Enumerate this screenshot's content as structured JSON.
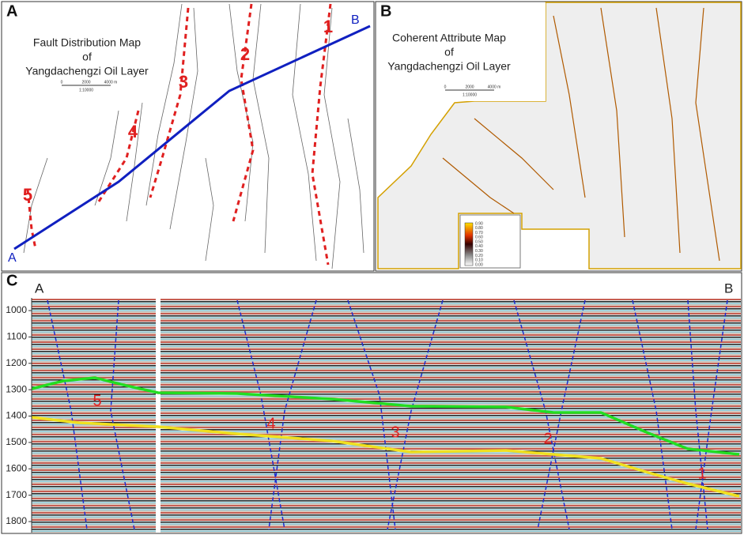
{
  "panel_a": {
    "label": "A",
    "title": [
      "Fault Distribution Map",
      "of",
      "Yangdachengzi Oil Layer"
    ],
    "scale": [
      "0",
      "2000",
      "4000 m",
      "1:10000"
    ],
    "line_ends": [
      "A",
      "B"
    ],
    "faults": [
      "1",
      "2",
      "3",
      "4",
      "5"
    ]
  },
  "panel_b": {
    "label": "B",
    "title": [
      "Coherent Attribute Map",
      "of",
      "Yangdachengzi Oil Layer"
    ],
    "scale": [
      "0",
      "2000",
      "4000 m",
      "1:10000"
    ],
    "colorbar": [
      "0.90",
      "0.80",
      "0.70",
      "0.60",
      "0.50",
      "0.40",
      "0.30",
      "0.20",
      "0.10",
      "0.00"
    ]
  },
  "panel_c": {
    "label": "C",
    "line_ends": [
      "A",
      "B"
    ],
    "depth_ticks": [
      1000,
      1100,
      1200,
      1300,
      1400,
      1500,
      1600,
      1700,
      1800
    ],
    "faults": [
      "5",
      "4",
      "3",
      "2",
      "1"
    ]
  }
}
